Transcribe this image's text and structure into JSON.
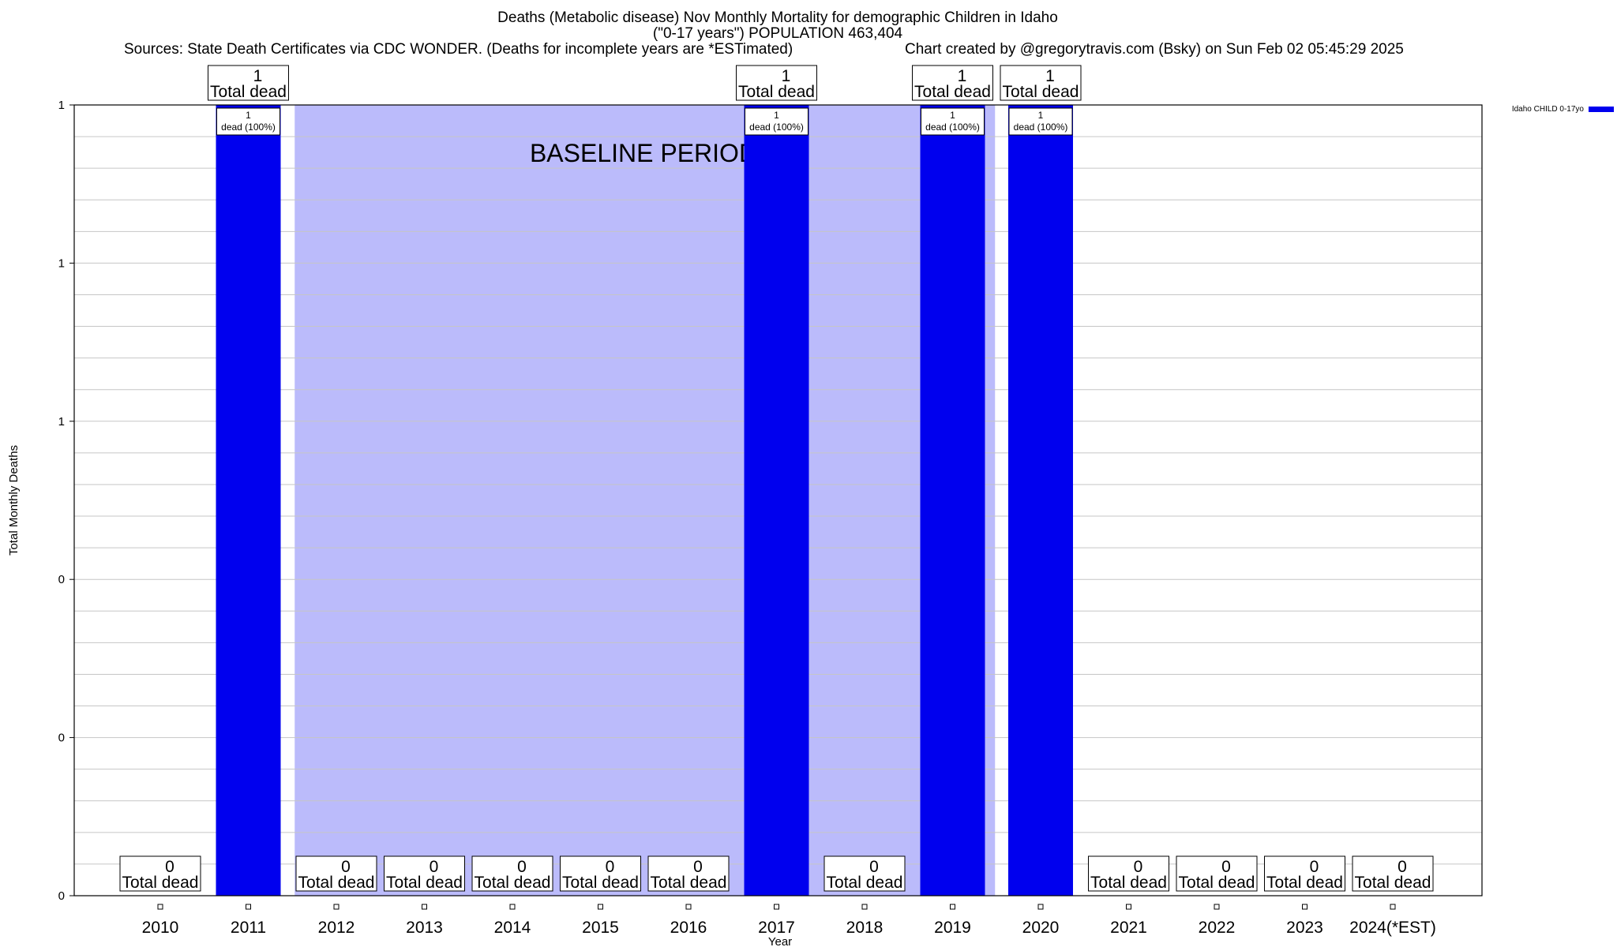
{
  "title": {
    "line1": "Deaths (Metabolic disease) Nov Monthly Mortality for demographic Children in Idaho",
    "line2": "(\"0-17 years\") POPULATION 463,404",
    "sources": "Sources: State Death Certificates via CDC WONDER. (Deaths for incomplete years are *ESTimated)",
    "credit": "Chart created by @gregorytravis.com (Bsky) on Sun Feb 02 05:45:29 2025"
  },
  "chart_data": {
    "type": "bar",
    "xlabel": "Year",
    "ylabel": "Total Monthly Deaths",
    "ylim": [
      0,
      1
    ],
    "y_tick_labels": [
      "0",
      "0",
      "0",
      "1",
      "1",
      "1"
    ],
    "categories": [
      "2010",
      "2011",
      "2012",
      "2013",
      "2014",
      "2015",
      "2016",
      "2017",
      "2018",
      "2019",
      "2020",
      "2021",
      "2022",
      "2023",
      "2024(*EST)"
    ],
    "series": [
      {
        "name": "Idaho CHILD 0-17yo",
        "color": "#0000ee",
        "values": [
          0,
          1,
          0,
          0,
          0,
          0,
          0,
          1,
          0,
          1,
          1,
          0,
          0,
          0,
          0
        ]
      }
    ],
    "total_labels": [
      "0",
      "1",
      "0",
      "0",
      "0",
      "0",
      "0",
      "1",
      "0",
      "1",
      "1",
      "0",
      "0",
      "0",
      "0"
    ],
    "total_caption": "Total dead",
    "bar_labels": {
      "count": "1",
      "detail": "dead (100%)"
    },
    "baseline": {
      "label": "BASELINE PERIOD",
      "start": 2012,
      "end": 2019,
      "color": "#bbbbfb"
    },
    "legend_position": "top-right",
    "grid": true
  }
}
